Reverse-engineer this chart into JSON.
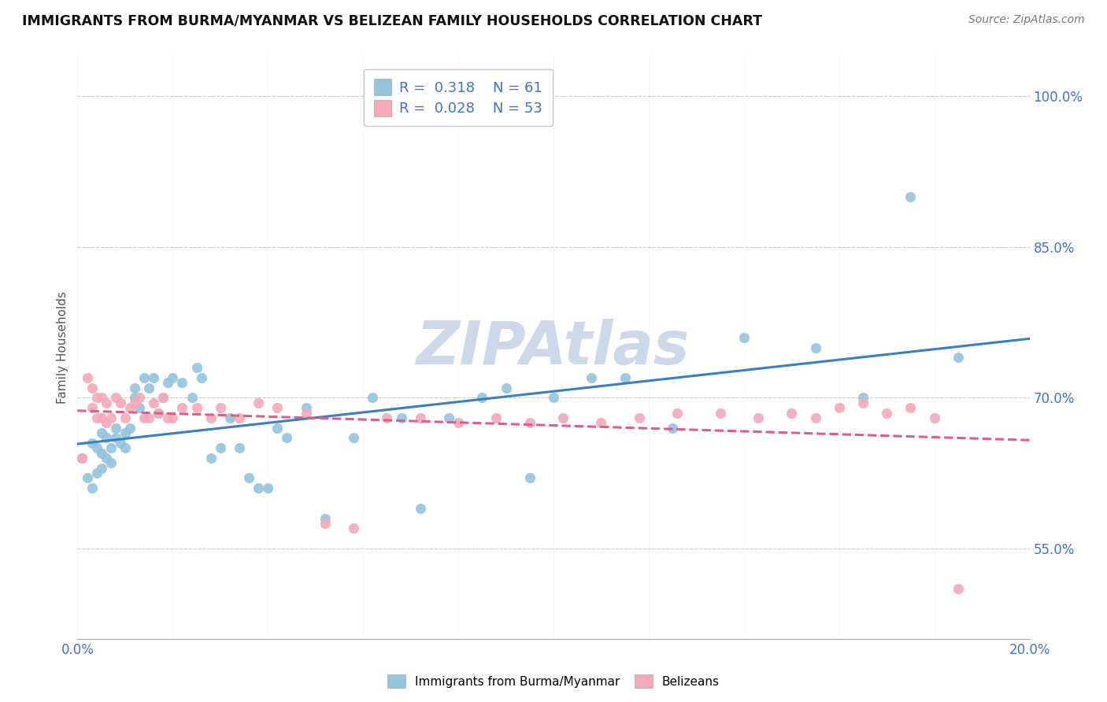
{
  "title": "IMMIGRANTS FROM BURMA/MYANMAR VS BELIZEAN FAMILY HOUSEHOLDS CORRELATION CHART",
  "source": "Source: ZipAtlas.com",
  "ylabel": "Family Households",
  "xlim": [
    0.0,
    0.2
  ],
  "ylim": [
    0.46,
    1.04
  ],
  "yticks": [
    0.55,
    0.7,
    0.85,
    1.0
  ],
  "ytick_labels": [
    "55.0%",
    "70.0%",
    "85.0%",
    "100.0%"
  ],
  "xtick_left": "0.0%",
  "xtick_right": "20.0%",
  "blue_R": 0.318,
  "blue_N": 61,
  "pink_R": 0.028,
  "pink_N": 53,
  "blue_color": "#92c5de",
  "pink_color": "#f4a9b8",
  "blue_line_color": "#3a7fc1",
  "pink_line_color": "#e05c8a",
  "grid_color": "#cccccc",
  "background_color": "#ffffff",
  "watermark_text": "ZIPAtlas",
  "watermark_color": "#cdd8e8",
  "axis_label_color": "#4472c4",
  "legend_text_color": "#333333",
  "legend_R_color": "#4472c4",
  "blue_x": [
    0.001,
    0.002,
    0.003,
    0.003,
    0.004,
    0.004,
    0.005,
    0.005,
    0.005,
    0.006,
    0.006,
    0.007,
    0.007,
    0.008,
    0.008,
    0.009,
    0.01,
    0.01,
    0.011,
    0.012,
    0.012,
    0.013,
    0.014,
    0.015,
    0.016,
    0.017,
    0.018,
    0.019,
    0.02,
    0.022,
    0.024,
    0.025,
    0.026,
    0.028,
    0.03,
    0.032,
    0.034,
    0.036,
    0.038,
    0.04,
    0.042,
    0.044,
    0.048,
    0.052,
    0.058,
    0.062,
    0.068,
    0.072,
    0.078,
    0.085,
    0.09,
    0.095,
    0.1,
    0.108,
    0.115,
    0.125,
    0.14,
    0.155,
    0.165,
    0.175,
    0.185
  ],
  "blue_y": [
    0.64,
    0.62,
    0.655,
    0.61,
    0.65,
    0.625,
    0.665,
    0.645,
    0.63,
    0.66,
    0.64,
    0.635,
    0.65,
    0.66,
    0.67,
    0.655,
    0.665,
    0.65,
    0.67,
    0.7,
    0.71,
    0.69,
    0.72,
    0.71,
    0.72,
    0.685,
    0.7,
    0.715,
    0.72,
    0.715,
    0.7,
    0.73,
    0.72,
    0.64,
    0.65,
    0.68,
    0.65,
    0.62,
    0.61,
    0.61,
    0.67,
    0.66,
    0.69,
    0.58,
    0.66,
    0.7,
    0.68,
    0.59,
    0.68,
    0.7,
    0.71,
    0.62,
    0.7,
    0.72,
    0.72,
    0.67,
    0.76,
    0.75,
    0.7,
    0.9,
    0.74
  ],
  "pink_x": [
    0.001,
    0.002,
    0.003,
    0.003,
    0.004,
    0.004,
    0.005,
    0.005,
    0.006,
    0.006,
    0.007,
    0.008,
    0.009,
    0.01,
    0.011,
    0.012,
    0.013,
    0.014,
    0.015,
    0.016,
    0.017,
    0.018,
    0.019,
    0.02,
    0.022,
    0.025,
    0.028,
    0.03,
    0.034,
    0.038,
    0.042,
    0.048,
    0.052,
    0.058,
    0.065,
    0.072,
    0.08,
    0.088,
    0.095,
    0.102,
    0.11,
    0.118,
    0.126,
    0.135,
    0.143,
    0.15,
    0.155,
    0.16,
    0.165,
    0.17,
    0.175,
    0.18,
    0.185
  ],
  "pink_y": [
    0.64,
    0.72,
    0.71,
    0.69,
    0.7,
    0.68,
    0.68,
    0.7,
    0.695,
    0.675,
    0.68,
    0.7,
    0.695,
    0.68,
    0.69,
    0.695,
    0.7,
    0.68,
    0.68,
    0.695,
    0.685,
    0.7,
    0.68,
    0.68,
    0.69,
    0.69,
    0.68,
    0.69,
    0.68,
    0.695,
    0.69,
    0.685,
    0.575,
    0.57,
    0.68,
    0.68,
    0.675,
    0.68,
    0.675,
    0.68,
    0.675,
    0.68,
    0.685,
    0.685,
    0.68,
    0.685,
    0.68,
    0.69,
    0.695,
    0.685,
    0.69,
    0.68,
    0.51
  ]
}
